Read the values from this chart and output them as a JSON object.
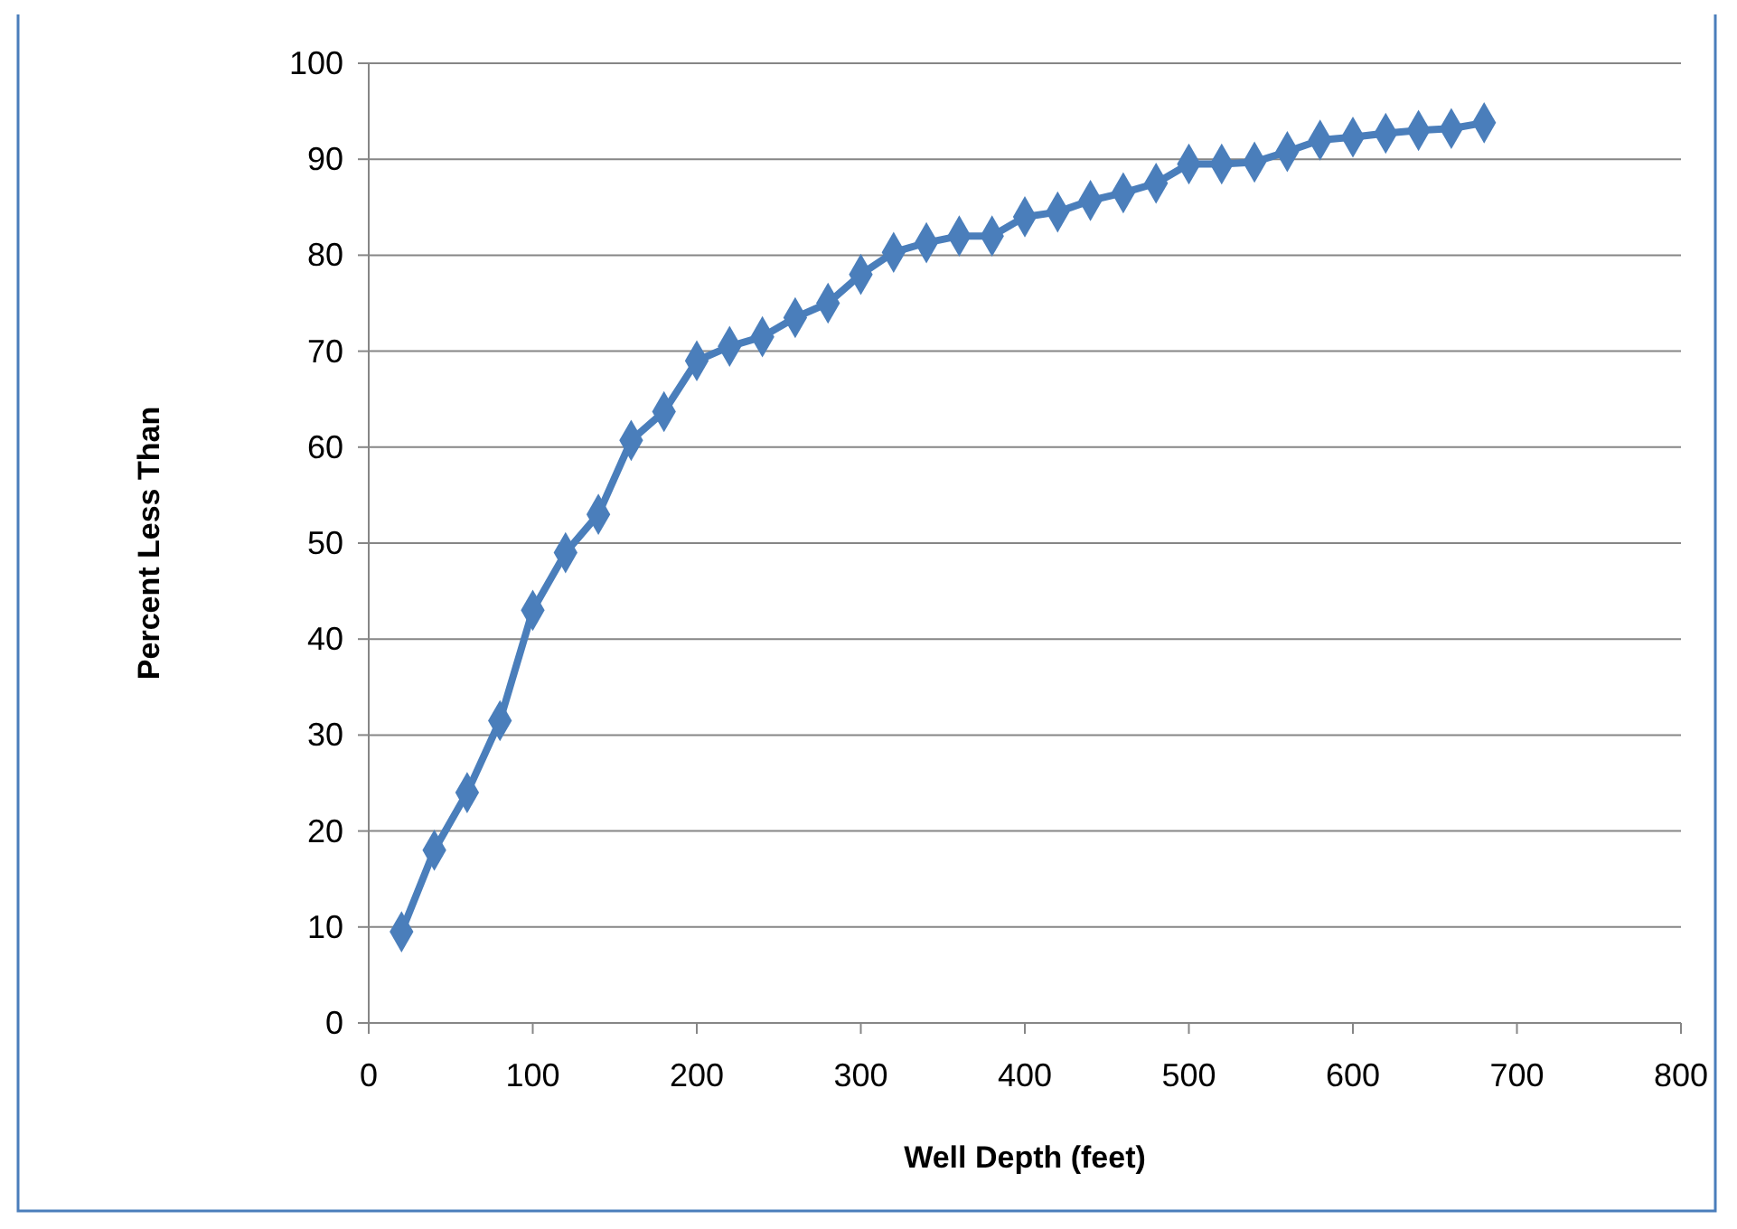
{
  "chart_data": {
    "type": "line",
    "xlabel": "Well Depth (feet)",
    "ylabel": "Percent Less Than",
    "x": [
      20,
      40,
      60,
      80,
      100,
      120,
      140,
      160,
      180,
      200,
      220,
      240,
      260,
      280,
      300,
      320,
      340,
      360,
      380,
      400,
      420,
      440,
      460,
      480,
      500,
      520,
      540,
      560,
      580,
      600,
      620,
      640,
      660,
      680
    ],
    "series": [
      {
        "color": "#4a7ebb",
        "values": [
          9.5,
          18,
          24,
          31.5,
          43,
          49,
          53,
          60.7,
          63.7,
          69,
          70.5,
          71.5,
          73.5,
          75,
          78,
          80.3,
          81.3,
          82,
          82,
          84,
          84.5,
          85.7,
          86.5,
          87.5,
          89.5,
          89.5,
          89.7,
          90.8,
          92,
          92.3,
          92.7,
          93,
          93.2,
          93.8
        ]
      }
    ],
    "xlim": [
      0,
      800
    ],
    "xticks": [
      0,
      100,
      200,
      300,
      400,
      500,
      600,
      700,
      800
    ],
    "ylim": [
      0,
      100
    ],
    "yticks": [
      0,
      10,
      20,
      30,
      40,
      50,
      60,
      70,
      80,
      90,
      100
    ],
    "grid": "y",
    "marker": "diamond",
    "line_style": "solid"
  }
}
